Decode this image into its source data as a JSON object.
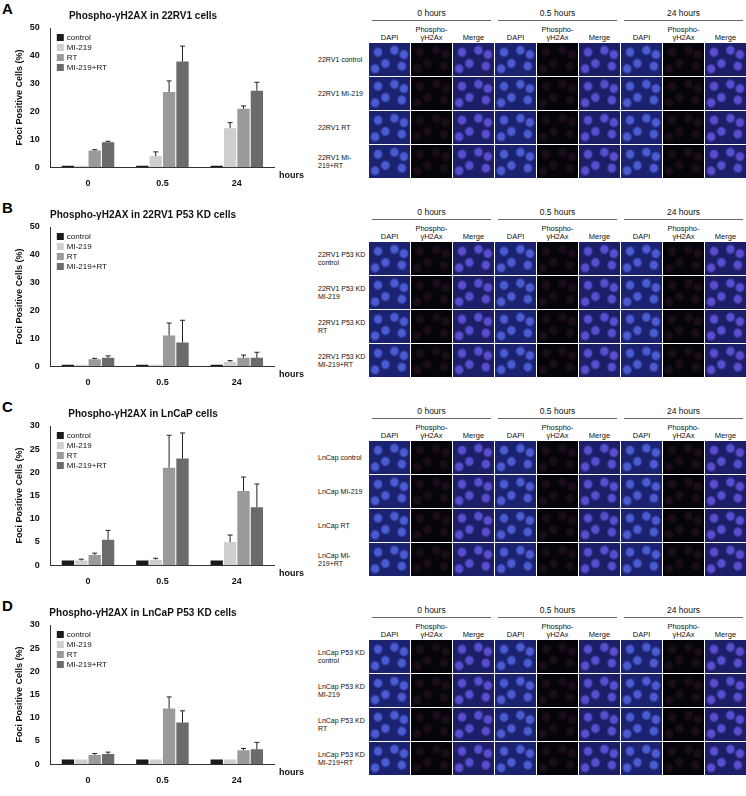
{
  "chart_data": [
    {
      "panel_label": "A",
      "type": "bar",
      "title": "Phospho-γH2AX in 22RV1 cells",
      "y_label": "Foci Positive Cells (%)",
      "x_label": "hours",
      "categories": [
        "0",
        "0.5",
        "24"
      ],
      "series": [
        {
          "name": "control",
          "color": "#1a1a1a",
          "values": [
            0.5,
            0.5,
            0.5
          ],
          "errors": [
            null,
            null,
            null
          ]
        },
        {
          "name": "MI-219",
          "color": "#cfcfcf",
          "values": [
            0.5,
            4,
            14
          ],
          "errors": [
            null,
            1.5,
            2
          ]
        },
        {
          "name": "RT",
          "color": "#9a9a9a",
          "values": [
            6,
            27,
            21
          ],
          "errors": [
            0.3,
            4,
            1
          ]
        },
        {
          "name": "MI-219+RT",
          "color": "#6b6b6b",
          "values": [
            9,
            38,
            27.5
          ],
          "errors": [
            0.3,
            5.5,
            3
          ]
        }
      ],
      "ylim": [
        0,
        50
      ],
      "yticks": [
        0,
        10,
        20,
        30,
        40,
        50
      ],
      "grid": false,
      "legend": "upper left"
    },
    {
      "panel_label": "B",
      "type": "bar",
      "title": "Phospho-γH2AX in 22RV1 P53 KD cells",
      "y_label": "Foci Positive Cells (%)",
      "x_label": "hours",
      "categories": [
        "0",
        "0.5",
        "24"
      ],
      "series": [
        {
          "name": "control",
          "color": "#1a1a1a",
          "values": [
            0.5,
            0.5,
            0.5
          ],
          "errors": [
            null,
            null,
            null
          ]
        },
        {
          "name": "MI-219",
          "color": "#cfcfcf",
          "values": [
            0.5,
            0.5,
            1.5
          ],
          "errors": [
            null,
            null,
            0.5
          ]
        },
        {
          "name": "RT",
          "color": "#9a9a9a",
          "values": [
            2.5,
            11,
            3
          ],
          "errors": [
            0.3,
            4.5,
            1
          ]
        },
        {
          "name": "MI-219+RT",
          "color": "#6b6b6b",
          "values": [
            3,
            8.5,
            3
          ],
          "errors": [
            0.7,
            8,
            2
          ]
        }
      ],
      "ylim": [
        0,
        50
      ],
      "yticks": [
        0,
        10,
        20,
        30,
        40,
        50
      ],
      "grid": false,
      "legend": "upper left"
    },
    {
      "panel_label": "C",
      "type": "bar",
      "title": "Phospho-γH2AX in LnCaP cells",
      "y_label": "Foci Positive Cells (%)",
      "x_label": "hours",
      "categories": [
        "0",
        "0.5",
        "24"
      ],
      "series": [
        {
          "name": "control",
          "color": "#1a1a1a",
          "values": [
            1,
            1,
            1
          ],
          "errors": [
            null,
            null,
            null
          ]
        },
        {
          "name": "MI-219",
          "color": "#cfcfcf",
          "values": [
            1,
            1.2,
            5
          ],
          "errors": [
            0.3,
            0.3,
            1.5
          ]
        },
        {
          "name": "RT",
          "color": "#9a9a9a",
          "values": [
            2.2,
            21,
            16
          ],
          "errors": [
            0.4,
            7,
            3
          ]
        },
        {
          "name": "MI-219+RT",
          "color": "#6b6b6b",
          "values": [
            5.5,
            23,
            12.5
          ],
          "errors": [
            2,
            5.5,
            5
          ]
        }
      ],
      "ylim": [
        0,
        30
      ],
      "yticks": [
        0,
        5,
        10,
        15,
        20,
        25,
        30
      ],
      "grid": false,
      "legend": "upper left"
    },
    {
      "panel_label": "D",
      "type": "bar",
      "title": "Phospho-γH2AX in LnCaP P53 KD cells",
      "y_label": "Foci Positive Cells (%)",
      "x_label": "hours",
      "categories": [
        "0",
        "0.5",
        "24"
      ],
      "series": [
        {
          "name": "control",
          "color": "#1a1a1a",
          "values": [
            1,
            1,
            1
          ],
          "errors": [
            null,
            null,
            null
          ]
        },
        {
          "name": "MI-219",
          "color": "#cfcfcf",
          "values": [
            1,
            1,
            1
          ],
          "errors": [
            null,
            null,
            null
          ]
        },
        {
          "name": "RT",
          "color": "#9a9a9a",
          "values": [
            2,
            12,
            3
          ],
          "errors": [
            0.3,
            2.5,
            0.4
          ]
        },
        {
          "name": "MI-219+RT",
          "color": "#6b6b6b",
          "values": [
            2.2,
            9,
            3.2
          ],
          "errors": [
            0.4,
            2.5,
            1.5
          ]
        }
      ],
      "ylim": [
        0,
        30
      ],
      "yticks": [
        0,
        5,
        10,
        15,
        20,
        25,
        30
      ],
      "grid": false,
      "legend": "upper left"
    }
  ],
  "image_panels": [
    {
      "column_headers": [
        "0 hours",
        "0.5 hours",
        "24 hours"
      ],
      "channel_labels": [
        "DAPI",
        "Phospho-γH2Ax",
        "Merge"
      ],
      "row_labels": [
        "22RV1 control",
        "22RV1 MI-219",
        "22RV1 RT",
        "22RV1 MI-219+RT"
      ]
    },
    {
      "column_headers": [
        "0 hours",
        "0.5 hours",
        "24 hours"
      ],
      "channel_labels": [
        "DAPI",
        "Phospho-γH2Ax",
        "Merge"
      ],
      "row_labels": [
        "22RV1 P53 KD control",
        "22RV1 P53 KD MI-219",
        "22RV1 P53 KD RT",
        "22RV1 P53 KD MI-219+RT"
      ]
    },
    {
      "column_headers": [
        "0 hours",
        "0.5 hours",
        "24 hours"
      ],
      "channel_labels": [
        "DAPI",
        "Phospho-γH2Ax",
        "Merge"
      ],
      "row_labels": [
        "LnCap control",
        "LnCap MI-219",
        "LnCap RT",
        "LnCap MI-219+RT"
      ]
    },
    {
      "column_headers": [
        "0 hours",
        "0.5 hours",
        "24 hours"
      ],
      "channel_labels": [
        "DAPI",
        "Phospho-γH2Ax",
        "Merge"
      ],
      "row_labels": [
        "LnCap P53 KD control",
        "LnCap P53 KD MI-219",
        "LnCap P53 KD RT",
        "LnCap P53 KD MI-219+RT"
      ]
    }
  ]
}
